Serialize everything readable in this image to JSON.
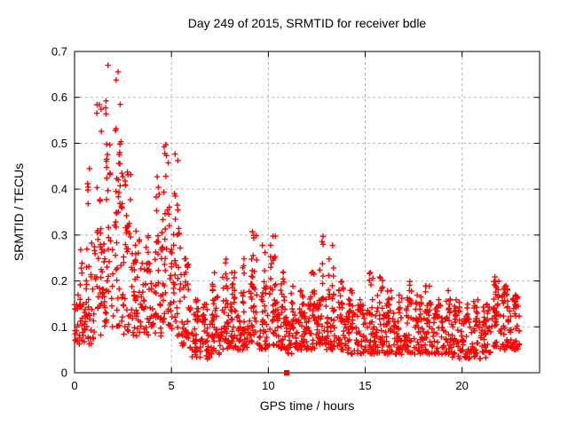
{
  "chart_data": {
    "type": "scatter",
    "title": "Day 249 of 2015, SRMTID for receiver bdle",
    "xlabel": "GPS time / hours",
    "ylabel": "SRMTID / TECUs",
    "xlim": [
      0,
      24
    ],
    "ylim": [
      0,
      0.7
    ],
    "xticks": [
      {
        "v": 0,
        "label": "0"
      },
      {
        "v": 5,
        "label": "5"
      },
      {
        "v": 10,
        "label": "10"
      },
      {
        "v": 15,
        "label": "15"
      },
      {
        "v": 20,
        "label": "20"
      }
    ],
    "yticks": [
      {
        "v": 0.0,
        "label": "0"
      },
      {
        "v": 0.1,
        "label": "0.1"
      },
      {
        "v": 0.2,
        "label": "0.2"
      },
      {
        "v": 0.3,
        "label": "0.3"
      },
      {
        "v": 0.4,
        "label": "0.4"
      },
      {
        "v": 0.5,
        "label": "0.5"
      },
      {
        "v": 0.6,
        "label": "0.6"
      },
      {
        "v": 0.7,
        "label": "0.7"
      }
    ],
    "grid": true,
    "grid_style": "dashed",
    "grid_color": "#b5b5b5",
    "axis_color": "#000000",
    "text_color": "#000000",
    "background": "#ffffff",
    "legend": null,
    "series": [
      {
        "name": "SRMTID",
        "marker": "plus",
        "color": "#ff0000",
        "bin_width_hours": 0.5,
        "x_data_start": 0.0,
        "x_data_end": 22.95,
        "envelope_note": "bins of [start_hour, point_count, typical_low, typical_high, max] read from the plot",
        "envelope_bins": [
          [
            0.0,
            40,
            0.06,
            0.16,
            0.27
          ],
          [
            0.5,
            40,
            0.06,
            0.2,
            0.45
          ],
          [
            1.0,
            42,
            0.08,
            0.3,
            0.59
          ],
          [
            1.5,
            46,
            0.1,
            0.42,
            0.675
          ],
          [
            2.0,
            46,
            0.1,
            0.45,
            0.66
          ],
          [
            2.5,
            40,
            0.08,
            0.3,
            0.44
          ],
          [
            3.0,
            38,
            0.08,
            0.24,
            0.31
          ],
          [
            3.5,
            38,
            0.07,
            0.22,
            0.3
          ],
          [
            4.0,
            40,
            0.08,
            0.28,
            0.43
          ],
          [
            4.5,
            44,
            0.1,
            0.35,
            0.5
          ],
          [
            5.0,
            42,
            0.08,
            0.3,
            0.48
          ],
          [
            5.5,
            40,
            0.05,
            0.15,
            0.25
          ],
          [
            6.0,
            36,
            0.03,
            0.11,
            0.16
          ],
          [
            6.5,
            36,
            0.03,
            0.11,
            0.15
          ],
          [
            7.0,
            38,
            0.04,
            0.12,
            0.22
          ],
          [
            7.5,
            40,
            0.05,
            0.14,
            0.25
          ],
          [
            8.0,
            40,
            0.05,
            0.15,
            0.22
          ],
          [
            8.5,
            40,
            0.05,
            0.16,
            0.25
          ],
          [
            9.0,
            42,
            0.06,
            0.18,
            0.31
          ],
          [
            9.5,
            40,
            0.05,
            0.15,
            0.28
          ],
          [
            10.0,
            42,
            0.06,
            0.18,
            0.3
          ],
          [
            10.5,
            40,
            0.05,
            0.14,
            0.22
          ],
          [
            11.0,
            40,
            0.04,
            0.12,
            0.19
          ],
          [
            11.5,
            40,
            0.05,
            0.13,
            0.18
          ],
          [
            12.0,
            40,
            0.05,
            0.15,
            0.22
          ],
          [
            12.5,
            42,
            0.06,
            0.16,
            0.3
          ],
          [
            13.0,
            42,
            0.05,
            0.15,
            0.28
          ],
          [
            13.5,
            40,
            0.05,
            0.14,
            0.2
          ],
          [
            14.0,
            40,
            0.04,
            0.13,
            0.18
          ],
          [
            14.5,
            38,
            0.04,
            0.12,
            0.16
          ],
          [
            15.0,
            40,
            0.04,
            0.13,
            0.22
          ],
          [
            15.5,
            40,
            0.04,
            0.14,
            0.21
          ],
          [
            16.0,
            40,
            0.04,
            0.13,
            0.18
          ],
          [
            16.5,
            38,
            0.04,
            0.12,
            0.17
          ],
          [
            17.0,
            40,
            0.04,
            0.13,
            0.2
          ],
          [
            17.5,
            38,
            0.04,
            0.12,
            0.17
          ],
          [
            18.0,
            40,
            0.04,
            0.13,
            0.19
          ],
          [
            18.5,
            38,
            0.04,
            0.12,
            0.16
          ],
          [
            19.0,
            38,
            0.04,
            0.12,
            0.18
          ],
          [
            19.5,
            38,
            0.03,
            0.11,
            0.16
          ],
          [
            20.0,
            38,
            0.03,
            0.11,
            0.15
          ],
          [
            20.5,
            38,
            0.03,
            0.11,
            0.16
          ],
          [
            21.0,
            38,
            0.03,
            0.11,
            0.15
          ],
          [
            21.5,
            40,
            0.05,
            0.15,
            0.21
          ],
          [
            22.0,
            42,
            0.05,
            0.17,
            0.19
          ],
          [
            22.5,
            40,
            0.05,
            0.14,
            0.17
          ]
        ]
      },
      {
        "name": "zero-value flag",
        "marker": "filled-square",
        "color": "#ff0000",
        "points": [
          [
            10.95,
            0
          ]
        ]
      }
    ]
  }
}
